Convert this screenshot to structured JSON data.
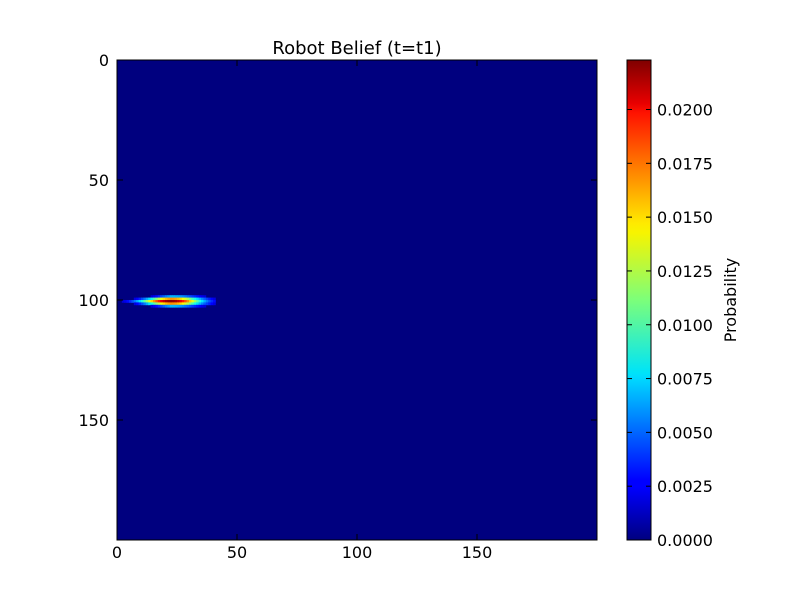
{
  "chart_data": {
    "type": "heatmap",
    "title": "Robot Belief (t=t1)",
    "xlabel": "",
    "ylabel": "",
    "xlim": [
      0,
      200
    ],
    "ylim": [
      200,
      0
    ],
    "x_ticks": [
      0,
      50,
      100,
      150
    ],
    "y_ticks": [
      0,
      50,
      100,
      150
    ],
    "x_tick_labels": [
      "0",
      "50",
      "100",
      "150"
    ],
    "y_tick_labels": [
      "0",
      "50",
      "100",
      "150"
    ],
    "colormap": "jet",
    "background_value": 0.0,
    "belief_peak": {
      "x": 22,
      "y": 100,
      "value": 0.022,
      "spread_x": 9,
      "spread_y": 1.3,
      "tail_start_x": 0
    },
    "colorbar": {
      "label": "Probability",
      "range": [
        0.0,
        0.0223
      ],
      "ticks": [
        0.0,
        0.0025,
        0.005,
        0.0075,
        0.01,
        0.0125,
        0.015,
        0.0175,
        0.02
      ],
      "tick_labels": [
        "0.0000",
        "0.0025",
        "0.0050",
        "0.0075",
        "0.0100",
        "0.0125",
        "0.0150",
        "0.0175",
        "0.0200"
      ]
    },
    "grid": false,
    "legend": "none"
  },
  "colors": {
    "background": "#00007f",
    "axes_edge": "#000000"
  }
}
